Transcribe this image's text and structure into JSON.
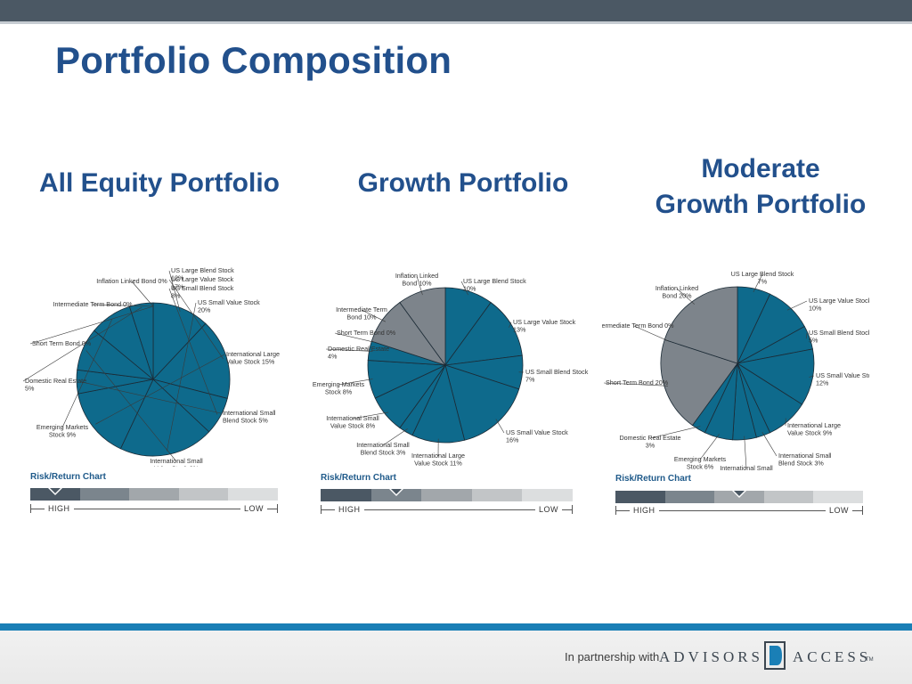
{
  "slide": {
    "title": "Portfolio Composition",
    "risk_title": "Risk/Return Chart",
    "risk_high": "HIGH",
    "risk_low": "LOW"
  },
  "footer": {
    "partner_text": "In partnership with",
    "brand_left": "ADVISORS",
    "brand_right": "ACCESS",
    "brand_tm": "TM"
  },
  "colors": {
    "slice_blue": "#0e6a8c",
    "slice_gray": "#7d848b",
    "title_blue": "#22508c",
    "risk_scale": [
      "#4b5864",
      "#7b858d",
      "#a2a7ab",
      "#c2c5c7",
      "#dcdedf"
    ]
  },
  "chart_data": [
    {
      "type": "pie",
      "title": "All Equity Portfolio",
      "risk_marker_index": 0,
      "slices": [
        {
          "label": "US Large Blend Stock 12%",
          "value": 12,
          "color": "blue"
        },
        {
          "label": "US Large Value Stock 17%",
          "value": 17,
          "color": "blue"
        },
        {
          "label": "US Small Blend Stock 8%",
          "value": 8,
          "color": "blue"
        },
        {
          "label": "US Small Value Stock 20%",
          "value": 20,
          "color": "blue"
        },
        {
          "label": "International Large Value Stock 15%",
          "value": 15,
          "color": "blue"
        },
        {
          "label": "International Small Blend Stock 5%",
          "value": 5,
          "color": "blue"
        },
        {
          "label": "International Small Value Stock 9%",
          "value": 9,
          "color": "blue"
        },
        {
          "label": "Emerging Markets Stock 9%",
          "value": 9,
          "color": "blue"
        },
        {
          "label": "Domestic Real Estate 5%",
          "value": 5,
          "color": "blue"
        },
        {
          "label": "Short Term Bond 0%",
          "value": 0,
          "color": "gray"
        },
        {
          "label": "Intermediate Term Bond 0%",
          "value": 0,
          "color": "gray"
        },
        {
          "label": "Inflation Linked Bond 0%",
          "value": 0,
          "color": "gray"
        }
      ]
    },
    {
      "type": "pie",
      "title": "Growth Portfolio",
      "risk_marker_index": 1,
      "slices": [
        {
          "label": "US Large Blend Stock 10%",
          "value": 10,
          "color": "blue"
        },
        {
          "label": "US Large Value Stock 13%",
          "value": 13,
          "color": "blue"
        },
        {
          "label": "US Small Blend Stock 7%",
          "value": 7,
          "color": "blue"
        },
        {
          "label": "US Small Value Stock 16%",
          "value": 16,
          "color": "blue"
        },
        {
          "label": "International Large Value Stock 11%",
          "value": 11,
          "color": "blue"
        },
        {
          "label": "International Small Blend Stock 3%",
          "value": 3,
          "color": "blue"
        },
        {
          "label": "International Small Value Stock 8%",
          "value": 8,
          "color": "blue"
        },
        {
          "label": "Emerging Markets Stock 8%",
          "value": 8,
          "color": "blue"
        },
        {
          "label": "Domestic Real Estate 4%",
          "value": 4,
          "color": "blue"
        },
        {
          "label": "Short Term Bond 0%",
          "value": 0,
          "color": "gray"
        },
        {
          "label": "Intermediate Term Bond 10%",
          "value": 10,
          "color": "gray"
        },
        {
          "label": "Inflation Linked Bond 10%",
          "value": 10,
          "color": "gray"
        }
      ]
    },
    {
      "type": "pie",
      "title": "Moderate\nGrowth Portfolio",
      "risk_marker_index": 2,
      "slices": [
        {
          "label": "US Large Blend Stock 7%",
          "value": 7,
          "color": "blue"
        },
        {
          "label": "US Large Value Stock 10%",
          "value": 10,
          "color": "blue"
        },
        {
          "label": "US Small Blend Stock 5%",
          "value": 5,
          "color": "blue"
        },
        {
          "label": "US Small Value Stock 12%",
          "value": 12,
          "color": "blue"
        },
        {
          "label": "International Large Value Stock 9%",
          "value": 9,
          "color": "blue"
        },
        {
          "label": "International Small Blend Stock 3%",
          "value": 3,
          "color": "blue"
        },
        {
          "label": "International Small Value Stock 5%",
          "value": 5,
          "color": "blue"
        },
        {
          "label": "Emerging Markets Stock 6%",
          "value": 6,
          "color": "blue"
        },
        {
          "label": "Domestic Real Estate 3%",
          "value": 3,
          "color": "blue"
        },
        {
          "label": "Short Term Bond 20%",
          "value": 20,
          "color": "gray"
        },
        {
          "label": "Intermediate Term Bond 0%",
          "value": 0,
          "color": "gray"
        },
        {
          "label": "Inflation Linked Bond 20%",
          "value": 20,
          "color": "gray"
        }
      ]
    }
  ]
}
